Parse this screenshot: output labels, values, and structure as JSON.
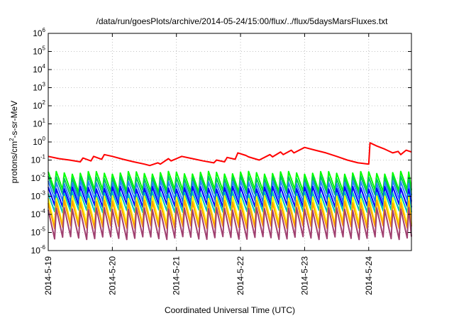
{
  "chart_data": {
    "type": "line",
    "title": "/data/run/goesPlots/archive/2014-05-24/15:00/flux/../flux/5daysMarsFluxes.txt",
    "xlabel": "Coordinated Universal Time (UTC)",
    "ylabel": {
      "prefix": "protons/cm",
      "superscript": "2",
      "suffix": "-s-sr-MeV"
    },
    "y_scale": "log",
    "ylim": [
      1e-06,
      1000000.0
    ],
    "y_tick_exponents": [
      -6,
      -5,
      -4,
      -3,
      -2,
      -1,
      0,
      1,
      2,
      3,
      4,
      5,
      6
    ],
    "y_tick_base": "10",
    "x_is_date": true,
    "xlim": [
      "2014-05-19T00:00",
      "2014-05-24T16:00"
    ],
    "x_ticks": [
      "2014-5-19",
      "2014-5-20",
      "2014-5-21",
      "2014-5-22",
      "2014-5-23",
      "2014-5-24"
    ],
    "x_tick_dates": [
      "2014-05-19",
      "2014-05-20",
      "2014-05-21",
      "2014-05-22",
      "2014-05-23",
      "2014-05-24"
    ],
    "grid": true,
    "legend": "none",
    "series": [
      {
        "color": "#ff0000",
        "x": [
          "2014-05-19T00:00",
          "2014-05-19T04:00",
          "2014-05-19T08:00",
          "2014-05-19T12:00",
          "2014-05-19T13:00",
          "2014-05-19T16:00",
          "2014-05-19T17:00",
          "2014-05-19T20:00",
          "2014-05-19T21:00",
          "2014-05-20T00:00",
          "2014-05-20T04:00",
          "2014-05-20T08:00",
          "2014-05-20T12:00",
          "2014-05-20T14:00",
          "2014-05-20T17:00",
          "2014-05-20T18:00",
          "2014-05-20T21:00",
          "2014-05-20T22:00",
          "2014-05-21T02:00",
          "2014-05-21T06:00",
          "2014-05-21T10:00",
          "2014-05-21T14:00",
          "2014-05-21T15:00",
          "2014-05-21T18:00",
          "2014-05-21T19:00",
          "2014-05-21T22:00",
          "2014-05-21T23:00",
          "2014-05-22T02:00",
          "2014-05-22T03:00",
          "2014-05-22T07:00",
          "2014-05-22T11:00",
          "2014-05-22T12:00",
          "2014-05-22T15:00",
          "2014-05-22T16:00",
          "2014-05-22T19:00",
          "2014-05-22T20:00",
          "2014-05-23T00:00",
          "2014-05-23T04:00",
          "2014-05-23T08:00",
          "2014-05-23T12:00",
          "2014-05-23T16:00",
          "2014-05-23T20:00",
          "2014-05-24T00:00",
          "2014-05-24T00:30",
          "2014-05-24T03:00",
          "2014-05-24T06:00",
          "2014-05-24T09:00",
          "2014-05-24T11:00",
          "2014-05-24T12:00",
          "2014-05-24T14:00",
          "2014-05-24T16:00"
        ],
        "y": [
          0.16,
          0.12,
          0.1,
          0.08,
          0.13,
          0.09,
          0.16,
          0.11,
          0.2,
          0.16,
          0.11,
          0.08,
          0.06,
          0.05,
          0.07,
          0.06,
          0.12,
          0.09,
          0.16,
          0.12,
          0.09,
          0.07,
          0.1,
          0.08,
          0.14,
          0.11,
          0.25,
          0.18,
          0.15,
          0.1,
          0.2,
          0.15,
          0.28,
          0.2,
          0.35,
          0.25,
          0.5,
          0.35,
          0.25,
          0.16,
          0.1,
          0.07,
          0.06,
          0.9,
          0.6,
          0.4,
          0.25,
          0.3,
          0.2,
          0.35,
          0.28
        ]
      },
      {
        "color": "#00ff00",
        "base": 0.02,
        "depth": 0.002
      },
      {
        "color": "#00c060",
        "base": 0.011,
        "depth": 0.0012
      },
      {
        "color": "#2a7fff",
        "base": 0.006,
        "depth": 0.0006
      },
      {
        "color": "#0000ff",
        "base": 0.003,
        "depth": 0.0003
      },
      {
        "color": "#00c0c0",
        "base": 0.0015,
        "depth": 0.00015
      },
      {
        "color": "#ffff00",
        "base": 0.0009,
        "depth": 3e-05
      },
      {
        "color": "#ff9f00",
        "base": 0.0005,
        "depth": 2e-05
      },
      {
        "color": "#a04070",
        "base": 0.0002,
        "depth": 5e-06
      }
    ],
    "cycle_period_hours": 3
  }
}
